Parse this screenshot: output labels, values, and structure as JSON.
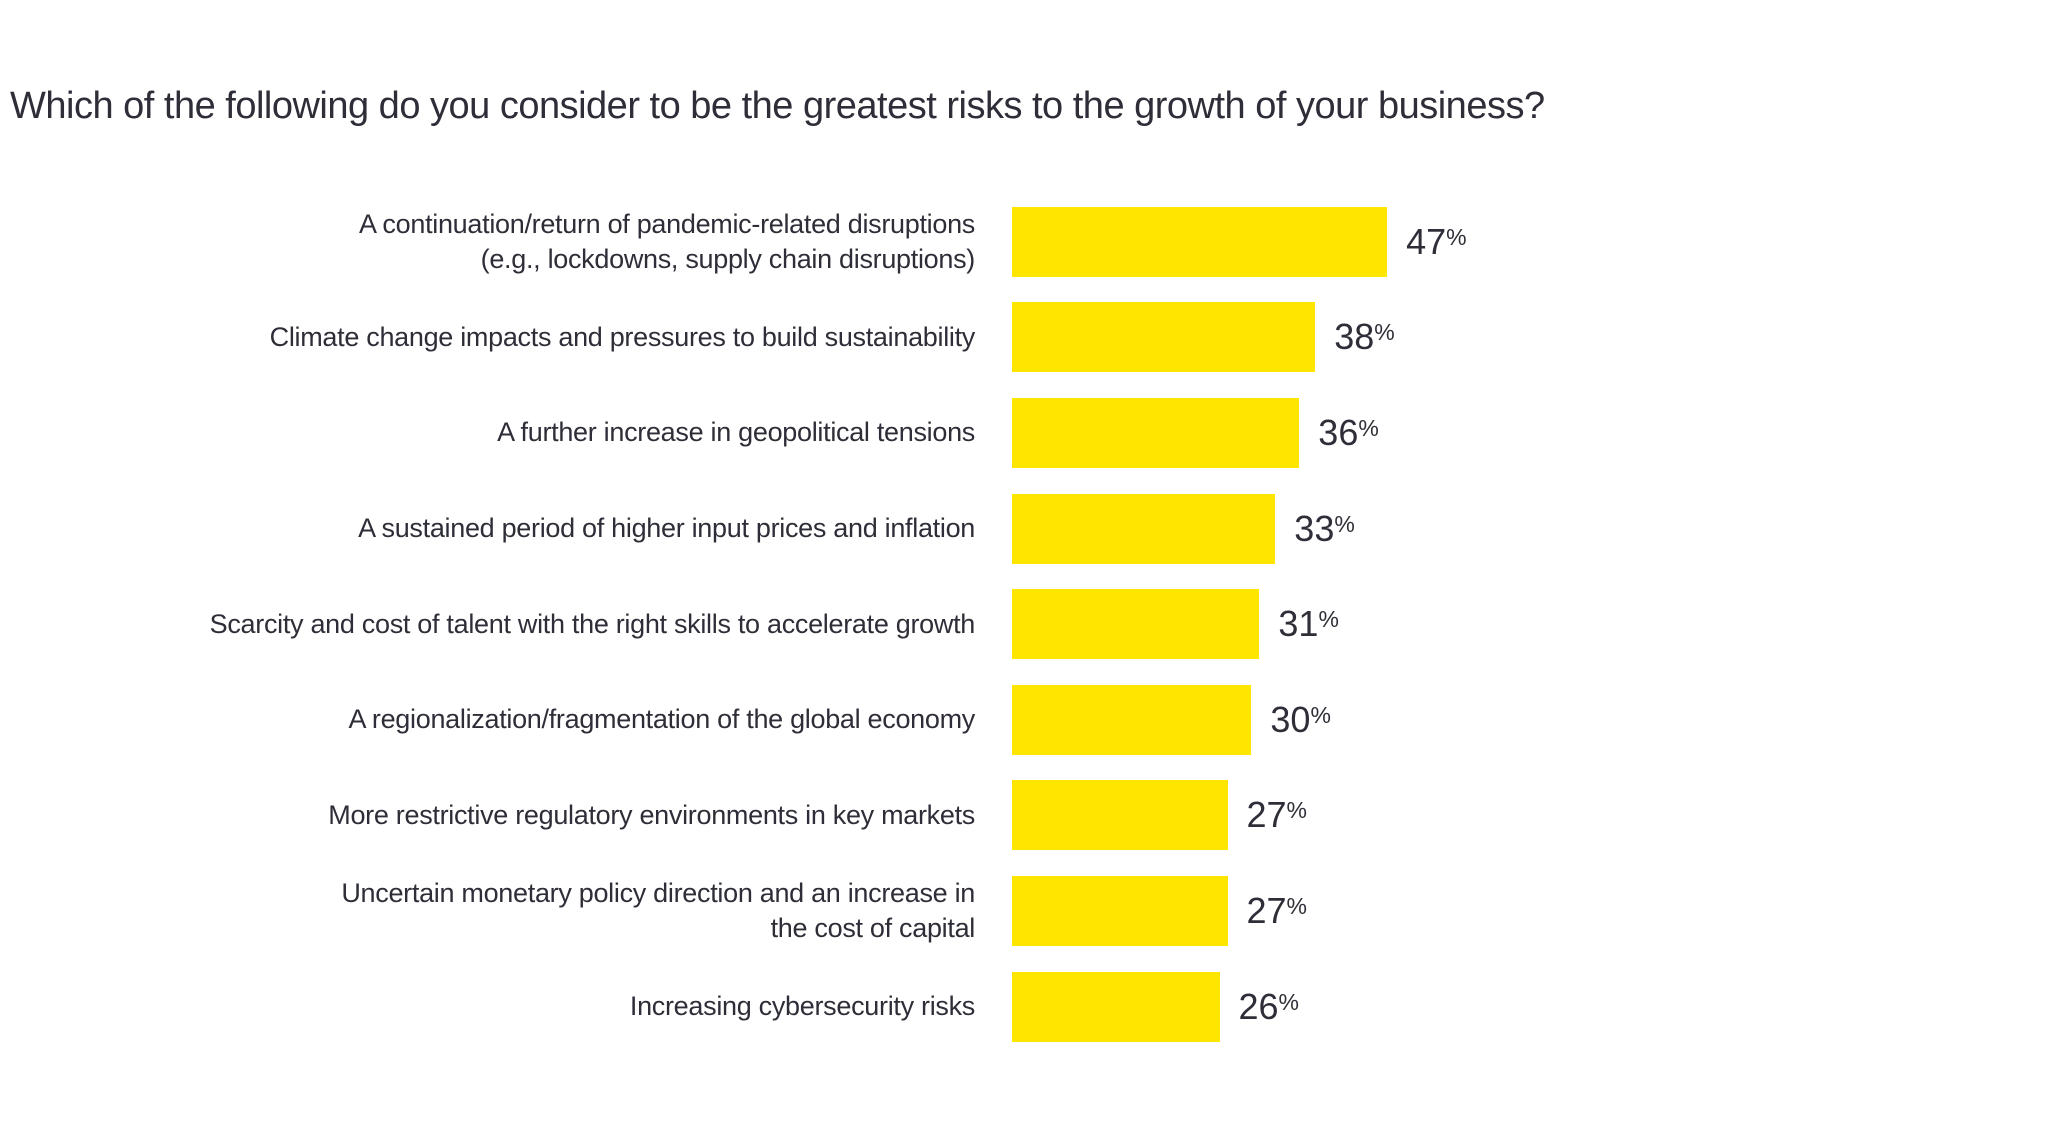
{
  "chart_data": {
    "type": "bar",
    "orientation": "horizontal",
    "title": "Which of the following do you consider to be the greatest risks to the growth of your business?",
    "categories": [
      "A continuation/return of pandemic-related disruptions\n(e.g., lockdowns, supply chain disruptions)",
      "Climate change impacts and pressures to build sustainability",
      "A further increase in geopolitical tensions",
      "A sustained period of higher input prices and inflation",
      "Scarcity and cost of talent with the right skills to accelerate growth",
      "A regionalization/fragmentation of the global economy",
      "More restrictive regulatory environments in key markets",
      "Uncertain monetary policy direction and an increase in\nthe cost of capital",
      "Increasing cybersecurity risks"
    ],
    "values": [
      47,
      38,
      36,
      33,
      31,
      30,
      27,
      27,
      26
    ],
    "unit": "%",
    "value_label_position": "outside-end",
    "xlim": [
      0,
      50
    ],
    "grid": false,
    "legend": "none",
    "bar_color": "#FFE600",
    "text_color": "#2E2E38",
    "background_color": "#FFFFFF"
  }
}
